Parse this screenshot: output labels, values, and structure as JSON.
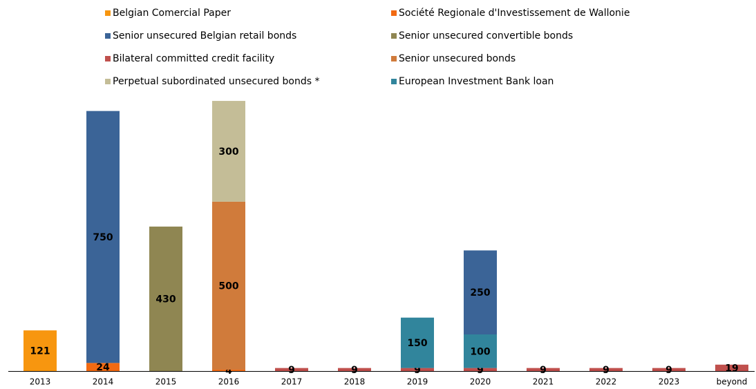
{
  "chart_data": {
    "type": "stacked_bar",
    "categories": [
      "2013",
      "2014",
      "2015",
      "2016",
      "2017",
      "2018",
      "2019",
      "2020",
      "2021",
      "2022",
      "2023",
      "beyond"
    ],
    "series": [
      {
        "name": "Belgian Comercial Paper",
        "color": "#f7960f",
        "values": [
          121,
          null,
          null,
          null,
          null,
          null,
          null,
          null,
          null,
          null,
          null,
          null
        ]
      },
      {
        "name": "Société Regionale d'Investissement de Wallonie",
        "color": "#f26a12",
        "values": [
          null,
          24,
          null,
          4,
          null,
          null,
          null,
          null,
          null,
          null,
          null,
          null
        ]
      },
      {
        "name": "Bilateral committed credit facility",
        "color": "#c0504d",
        "values": [
          null,
          null,
          null,
          null,
          9,
          9,
          9,
          9,
          9,
          9,
          9,
          19
        ]
      },
      {
        "name": "Senior unsecured bonds",
        "color": "#d07b3b",
        "values": [
          null,
          null,
          null,
          500,
          null,
          null,
          null,
          null,
          null,
          null,
          null,
          null
        ]
      },
      {
        "name": "European Investment Bank loan",
        "color": "#31859c",
        "values": [
          null,
          null,
          null,
          null,
          null,
          null,
          150,
          100,
          null,
          null,
          null,
          null
        ]
      },
      {
        "name": "Senior unsecured convertible bonds",
        "color": "#8f8652",
        "values": [
          null,
          null,
          430,
          null,
          null,
          null,
          null,
          null,
          null,
          null,
          null,
          null
        ]
      },
      {
        "name": "Senior unsecured Belgian retail bonds",
        "color": "#3b6497",
        "values": [
          null,
          750,
          null,
          null,
          null,
          null,
          null,
          250,
          null,
          null,
          null,
          null
        ]
      },
      {
        "name": "Perpetual subordinated unsecured bonds *",
        "color": "#c4bd97",
        "values": [
          null,
          null,
          null,
          300,
          null,
          null,
          null,
          null,
          null,
          null,
          null,
          null
        ]
      }
    ],
    "ylim": [
      0,
      800
    ]
  }
}
